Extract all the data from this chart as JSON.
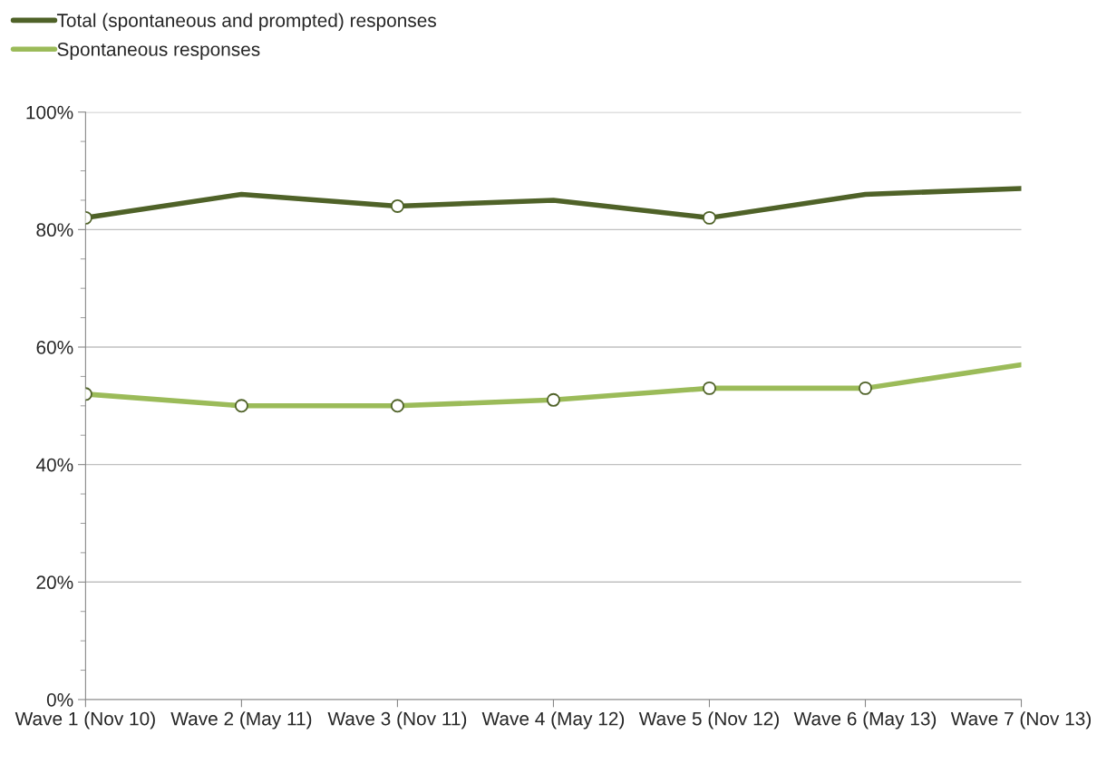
{
  "chart_data": {
    "type": "line",
    "categories": [
      "Wave 1 (Nov 10)",
      "Wave 2 (May 11)",
      "Wave 3 (Nov 11)",
      "Wave 4 (May 12)",
      "Wave 5 (Nov 12)",
      "Wave 6 (May 13)",
      "Wave 7 (Nov 13)"
    ],
    "series": [
      {
        "name": "Total (spontaneous and prompted) responses",
        "color": "#4f6228",
        "values": [
          82,
          86,
          84,
          85,
          82,
          86,
          87
        ]
      },
      {
        "name": "Spontaneous responses",
        "color": "#9bbb59",
        "values": [
          52,
          50,
          50,
          51,
          53,
          53,
          57
        ]
      },
      {
        "type": "scatter",
        "color": "#4f6228",
        "x": [
          "Wave 1 (Nov 10)",
          "Wave 3 (Nov 11)",
          "Wave 5 (Nov 12)"
        ],
        "values": [
          82,
          84,
          82
        ],
        "marker": "circle"
      },
      {
        "type": "scatter",
        "color": "#4f6228",
        "x": [
          "Wave 1 (Nov 10)",
          "Wave 2 (May 11)",
          "Wave 3 (Nov 11)",
          "Wave 4 (May 12)",
          "Wave 5 (Nov 12)",
          "Wave 6 (May 13)"
        ],
        "values": [
          52,
          50,
          50,
          51,
          53,
          53
        ],
        "marker": "circle"
      }
    ],
    "ylim": [
      0,
      100
    ],
    "yticks": [
      {
        "value": 0,
        "label": "0%"
      },
      {
        "value": 20,
        "label": "20%"
      },
      {
        "value": 40,
        "label": "40%"
      },
      {
        "value": 60,
        "label": "60%"
      },
      {
        "value": 80,
        "label": "80%"
      },
      {
        "value": 100,
        "label": "100%"
      }
    ],
    "grid": "y",
    "legend": "top left",
    "marker": "none",
    "line_style": "solid"
  }
}
